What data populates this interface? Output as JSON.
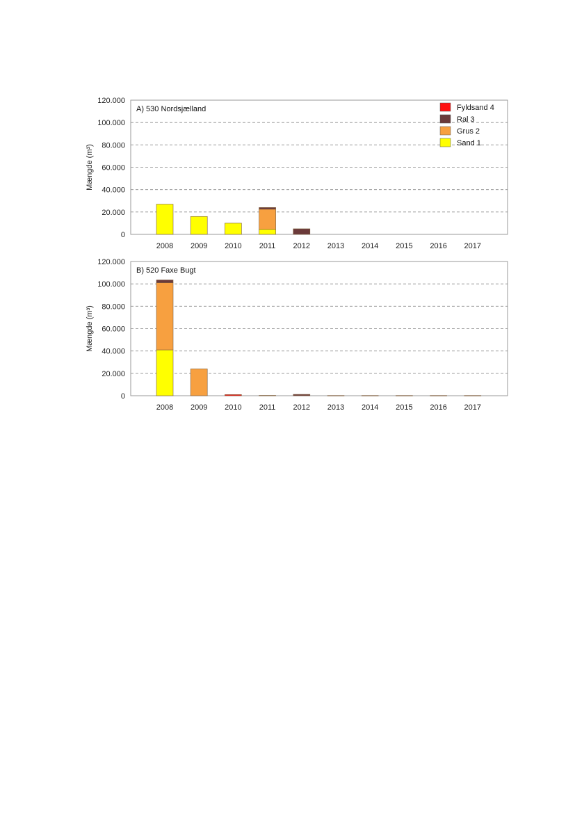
{
  "chart_data": [
    {
      "type": "bar",
      "stacked": true,
      "title": "A) 530 Nordsjælland",
      "ylabel": "Mængde (m³)",
      "ylim": [
        0,
        120000
      ],
      "yticks": [
        "0",
        "20.000",
        "40.000",
        "60.000",
        "80.000",
        "100.000",
        "120.000"
      ],
      "categories": [
        "2008",
        "2009",
        "2010",
        "2011",
        "2012",
        "2013",
        "2014",
        "2015",
        "2016",
        "2017"
      ],
      "grid": true,
      "legend": "top-right",
      "series": [
        {
          "name": "Sand 1",
          "color": "#ffff00",
          "values": [
            27000,
            16000,
            10000,
            4500,
            0,
            0,
            0,
            0,
            0,
            0
          ]
        },
        {
          "name": "Grus 2",
          "color": "#f7a040",
          "values": [
            0,
            0,
            0,
            18000,
            0,
            0,
            0,
            0,
            0,
            0
          ]
        },
        {
          "name": "Ral 3",
          "color": "#6b3a3a",
          "values": [
            0,
            0,
            0,
            1500,
            5000,
            0,
            0,
            0,
            0,
            0
          ]
        },
        {
          "name": "Fyldsand 4",
          "color": "#ff1010",
          "values": [
            0,
            0,
            0,
            0,
            0,
            0,
            0,
            0,
            0,
            0
          ]
        }
      ]
    },
    {
      "type": "bar",
      "stacked": true,
      "title": "B) 520 Faxe Bugt",
      "ylabel": "Mængde (m³)",
      "ylim": [
        0,
        120000
      ],
      "yticks": [
        "0",
        "20.000",
        "40.000",
        "60.000",
        "80.000",
        "100.000",
        "120.000"
      ],
      "categories": [
        "2008",
        "2009",
        "2010",
        "2011",
        "2012",
        "2013",
        "2014",
        "2015",
        "2016",
        "2017"
      ],
      "grid": true,
      "legend": "none",
      "series": [
        {
          "name": "Sand 1",
          "color": "#ffff00",
          "values": [
            41000,
            0,
            0,
            0,
            0,
            0,
            0,
            0,
            0,
            0
          ]
        },
        {
          "name": "Grus 2",
          "color": "#f7a040",
          "values": [
            60000,
            24000,
            0,
            300,
            0,
            0,
            0,
            0,
            0,
            0
          ]
        },
        {
          "name": "Ral 3",
          "color": "#6b3a3a",
          "values": [
            2500,
            0,
            0,
            0,
            1200,
            200,
            200,
            200,
            200,
            200
          ]
        },
        {
          "name": "Fyldsand 4",
          "color": "#ff1010",
          "values": [
            0,
            0,
            1000,
            0,
            0,
            0,
            0,
            0,
            0,
            0
          ]
        }
      ]
    }
  ]
}
